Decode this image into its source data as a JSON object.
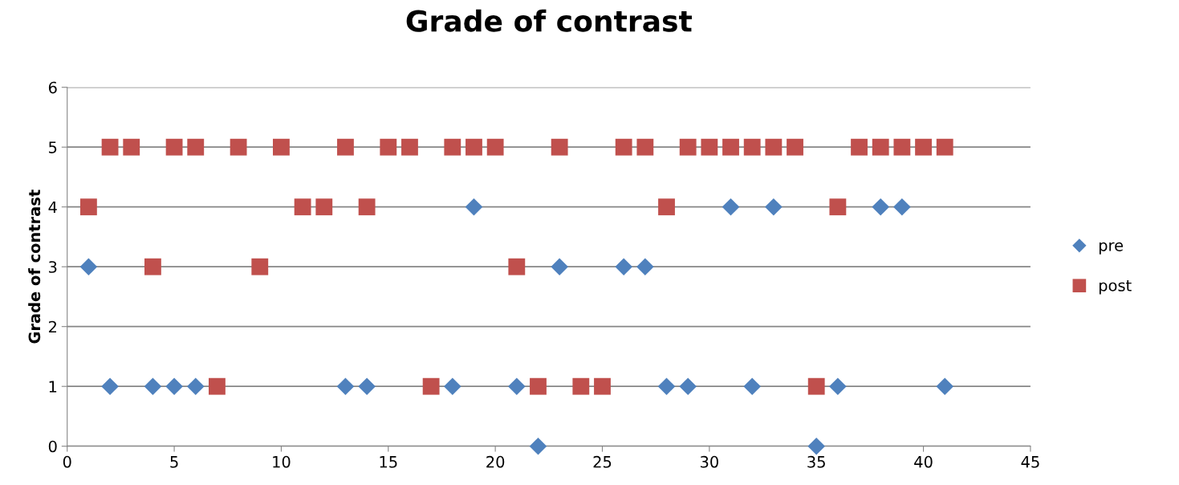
{
  "chart_data": {
    "type": "scatter",
    "title": "Grade of contrast",
    "ylabel": "Grade of contrast",
    "x": [
      1,
      2,
      3,
      4,
      5,
      6,
      7,
      8,
      9,
      10,
      11,
      12,
      13,
      14,
      15,
      16,
      17,
      18,
      19,
      20,
      21,
      22,
      23,
      24,
      25,
      26,
      27,
      28,
      29,
      30,
      31,
      32,
      33,
      34,
      35,
      36,
      37,
      38,
      39,
      40,
      41
    ],
    "series": [
      {
        "name": "pre",
        "color": "#4f81bd",
        "marker": "diamond",
        "values": [
          3,
          1,
          null,
          1,
          1,
          1,
          null,
          null,
          null,
          null,
          null,
          null,
          1,
          1,
          null,
          null,
          null,
          1,
          4,
          null,
          1,
          0,
          3,
          null,
          null,
          3,
          3,
          1,
          1,
          null,
          4,
          1,
          4,
          null,
          0,
          1,
          null,
          4,
          4,
          null,
          1
        ]
      },
      {
        "name": "post",
        "color": "#c0504d",
        "marker": "square",
        "values": [
          4,
          5,
          5,
          3,
          5,
          5,
          1,
          5,
          3,
          5,
          4,
          4,
          5,
          4,
          5,
          5,
          1,
          5,
          5,
          5,
          3,
          1,
          5,
          1,
          1,
          5,
          5,
          4,
          5,
          5,
          5,
          5,
          5,
          5,
          1,
          4,
          5,
          5,
          5,
          5,
          5
        ]
      }
    ],
    "xlim": [
      0,
      45
    ],
    "xticks": [
      0,
      5,
      10,
      15,
      20,
      25,
      30,
      35,
      40,
      45
    ],
    "ylim": [
      0,
      6
    ],
    "yticks": [
      0,
      1,
      2,
      3,
      4,
      5,
      6
    ],
    "grid": "y",
    "legend": "right"
  }
}
